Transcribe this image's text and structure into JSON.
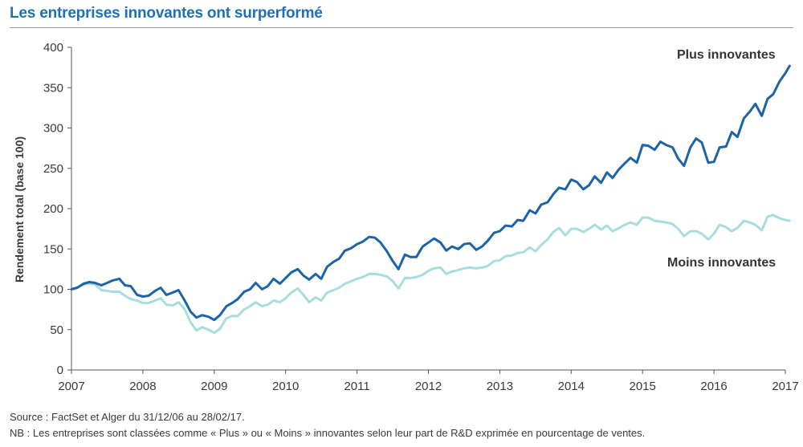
{
  "title": "Les entreprises innovantes ont surperformé",
  "notes": {
    "source": "Source :  FactSet et Alger du 31/12/06 au 28/02/17.",
    "nb": "NB :  Les entreprises sont classées comme « Plus » ou « Moins » innovantes selon leur part de R&D exprimée en pourcentage de ventes."
  },
  "chart_data": {
    "type": "line",
    "title": "Les entreprises innovantes ont surperformé",
    "xlabel": "",
    "ylabel": "Rendement total (base 100)",
    "ylim": [
      0,
      400
    ],
    "xlim": [
      2007,
      2017
    ],
    "yticks": [
      0,
      50,
      100,
      150,
      200,
      250,
      300,
      350,
      400
    ],
    "xticks": [
      2007,
      2008,
      2009,
      2010,
      2011,
      2012,
      2013,
      2014,
      2015,
      2016,
      2017
    ],
    "grid": false,
    "legend": "direct labels at line ends",
    "colors": {
      "plus": "#1d63a8",
      "moins": "#a8dde0"
    },
    "series": [
      {
        "name": "Plus innovantes",
        "points": [
          [
            2007.0,
            100
          ],
          [
            2007.08,
            102
          ],
          [
            2007.17,
            107
          ],
          [
            2007.25,
            109
          ],
          [
            2007.33,
            108
          ],
          [
            2007.42,
            105
          ],
          [
            2007.5,
            108
          ],
          [
            2007.58,
            111
          ],
          [
            2007.67,
            113
          ],
          [
            2007.75,
            105
          ],
          [
            2007.83,
            104
          ],
          [
            2007.92,
            93
          ],
          [
            2008.0,
            91
          ],
          [
            2008.08,
            92
          ],
          [
            2008.17,
            98
          ],
          [
            2008.25,
            102
          ],
          [
            2008.33,
            93
          ],
          [
            2008.42,
            96
          ],
          [
            2008.5,
            99
          ],
          [
            2008.58,
            87
          ],
          [
            2008.67,
            72
          ],
          [
            2008.75,
            65
          ],
          [
            2008.83,
            68
          ],
          [
            2008.92,
            66
          ],
          [
            2009.0,
            62
          ],
          [
            2009.08,
            68
          ],
          [
            2009.17,
            79
          ],
          [
            2009.25,
            83
          ],
          [
            2009.33,
            88
          ],
          [
            2009.42,
            97
          ],
          [
            2009.5,
            100
          ],
          [
            2009.58,
            108
          ],
          [
            2009.67,
            100
          ],
          [
            2009.75,
            104
          ],
          [
            2009.83,
            113
          ],
          [
            2009.92,
            107
          ],
          [
            2010.0,
            114
          ],
          [
            2010.08,
            121
          ],
          [
            2010.17,
            125
          ],
          [
            2010.25,
            117
          ],
          [
            2010.33,
            112
          ],
          [
            2010.42,
            119
          ],
          [
            2010.5,
            113
          ],
          [
            2010.58,
            128
          ],
          [
            2010.67,
            134
          ],
          [
            2010.75,
            138
          ],
          [
            2010.83,
            148
          ],
          [
            2010.92,
            151
          ],
          [
            2011.0,
            156
          ],
          [
            2011.08,
            159
          ],
          [
            2011.17,
            165
          ],
          [
            2011.25,
            164
          ],
          [
            2011.33,
            158
          ],
          [
            2011.42,
            147
          ],
          [
            2011.5,
            135
          ],
          [
            2011.58,
            125
          ],
          [
            2011.67,
            143
          ],
          [
            2011.75,
            140
          ],
          [
            2011.83,
            140
          ],
          [
            2011.92,
            153
          ],
          [
            2012.0,
            158
          ],
          [
            2012.08,
            163
          ],
          [
            2012.17,
            158
          ],
          [
            2012.25,
            148
          ],
          [
            2012.33,
            153
          ],
          [
            2012.42,
            150
          ],
          [
            2012.5,
            156
          ],
          [
            2012.58,
            157
          ],
          [
            2012.67,
            149
          ],
          [
            2012.75,
            153
          ],
          [
            2012.83,
            160
          ],
          [
            2012.92,
            170
          ],
          [
            2013.0,
            172
          ],
          [
            2013.08,
            179
          ],
          [
            2013.17,
            178
          ],
          [
            2013.25,
            186
          ],
          [
            2013.33,
            185
          ],
          [
            2013.42,
            198
          ],
          [
            2013.5,
            194
          ],
          [
            2013.58,
            205
          ],
          [
            2013.67,
            208
          ],
          [
            2013.75,
            218
          ],
          [
            2013.83,
            226
          ],
          [
            2013.92,
            224
          ],
          [
            2014.0,
            236
          ],
          [
            2014.08,
            233
          ],
          [
            2014.17,
            224
          ],
          [
            2014.25,
            229
          ],
          [
            2014.33,
            240
          ],
          [
            2014.42,
            232
          ],
          [
            2014.5,
            245
          ],
          [
            2014.58,
            238
          ],
          [
            2014.67,
            249
          ],
          [
            2014.75,
            256
          ],
          [
            2014.83,
            263
          ],
          [
            2014.92,
            257
          ],
          [
            2015.0,
            279
          ],
          [
            2015.08,
            278
          ],
          [
            2015.17,
            273
          ],
          [
            2015.25,
            283
          ],
          [
            2015.33,
            279
          ],
          [
            2015.42,
            276
          ],
          [
            2015.5,
            262
          ],
          [
            2015.58,
            253
          ],
          [
            2015.67,
            276
          ],
          [
            2015.75,
            287
          ],
          [
            2015.83,
            282
          ],
          [
            2015.92,
            257
          ],
          [
            2016.0,
            258
          ],
          [
            2016.08,
            276
          ],
          [
            2016.17,
            277
          ],
          [
            2016.25,
            295
          ],
          [
            2016.33,
            289
          ],
          [
            2016.42,
            312
          ],
          [
            2016.5,
            320
          ],
          [
            2016.58,
            330
          ],
          [
            2016.67,
            315
          ],
          [
            2016.75,
            336
          ],
          [
            2016.83,
            342
          ],
          [
            2016.92,
            358
          ],
          [
            2017.0,
            368
          ],
          [
            2017.06,
            377
          ]
        ]
      },
      {
        "name": "Moins innovantes",
        "points": [
          [
            2007.0,
            100
          ],
          [
            2007.08,
            102
          ],
          [
            2007.17,
            106
          ],
          [
            2007.25,
            107
          ],
          [
            2007.33,
            106
          ],
          [
            2007.42,
            99
          ],
          [
            2007.5,
            98
          ],
          [
            2007.58,
            97
          ],
          [
            2007.67,
            97
          ],
          [
            2007.75,
            92
          ],
          [
            2007.83,
            88
          ],
          [
            2007.92,
            86
          ],
          [
            2008.0,
            83
          ],
          [
            2008.08,
            83
          ],
          [
            2008.17,
            86
          ],
          [
            2008.25,
            89
          ],
          [
            2008.33,
            81
          ],
          [
            2008.42,
            80
          ],
          [
            2008.5,
            84
          ],
          [
            2008.58,
            76
          ],
          [
            2008.67,
            59
          ],
          [
            2008.75,
            49
          ],
          [
            2008.83,
            53
          ],
          [
            2008.92,
            50
          ],
          [
            2009.0,
            46
          ],
          [
            2009.08,
            51
          ],
          [
            2009.17,
            64
          ],
          [
            2009.25,
            67
          ],
          [
            2009.33,
            67
          ],
          [
            2009.42,
            75
          ],
          [
            2009.5,
            79
          ],
          [
            2009.58,
            84
          ],
          [
            2009.67,
            79
          ],
          [
            2009.75,
            81
          ],
          [
            2009.83,
            86
          ],
          [
            2009.92,
            84
          ],
          [
            2010.0,
            89
          ],
          [
            2010.08,
            96
          ],
          [
            2010.17,
            101
          ],
          [
            2010.25,
            93
          ],
          [
            2010.33,
            84
          ],
          [
            2010.42,
            90
          ],
          [
            2010.5,
            86
          ],
          [
            2010.58,
            96
          ],
          [
            2010.67,
            99
          ],
          [
            2010.75,
            102
          ],
          [
            2010.83,
            107
          ],
          [
            2010.92,
            110
          ],
          [
            2011.0,
            113
          ],
          [
            2011.08,
            115
          ],
          [
            2011.17,
            119
          ],
          [
            2011.25,
            119
          ],
          [
            2011.33,
            118
          ],
          [
            2011.42,
            116
          ],
          [
            2011.5,
            110
          ],
          [
            2011.58,
            101
          ],
          [
            2011.67,
            114
          ],
          [
            2011.75,
            114
          ],
          [
            2011.83,
            115
          ],
          [
            2011.92,
            118
          ],
          [
            2012.0,
            123
          ],
          [
            2012.08,
            126
          ],
          [
            2012.17,
            127
          ],
          [
            2012.25,
            119
          ],
          [
            2012.33,
            122
          ],
          [
            2012.42,
            124
          ],
          [
            2012.5,
            126
          ],
          [
            2012.58,
            127
          ],
          [
            2012.67,
            126
          ],
          [
            2012.75,
            127
          ],
          [
            2012.83,
            129
          ],
          [
            2012.92,
            135
          ],
          [
            2013.0,
            136
          ],
          [
            2013.08,
            141
          ],
          [
            2013.17,
            142
          ],
          [
            2013.25,
            145
          ],
          [
            2013.33,
            146
          ],
          [
            2013.42,
            152
          ],
          [
            2013.5,
            147
          ],
          [
            2013.58,
            155
          ],
          [
            2013.67,
            162
          ],
          [
            2013.75,
            171
          ],
          [
            2013.83,
            176
          ],
          [
            2013.92,
            167
          ],
          [
            2014.0,
            175
          ],
          [
            2014.08,
            175
          ],
          [
            2014.17,
            171
          ],
          [
            2014.25,
            175
          ],
          [
            2014.33,
            180
          ],
          [
            2014.42,
            174
          ],
          [
            2014.5,
            179
          ],
          [
            2014.58,
            172
          ],
          [
            2014.67,
            176
          ],
          [
            2014.75,
            180
          ],
          [
            2014.83,
            183
          ],
          [
            2014.92,
            180
          ],
          [
            2015.0,
            189
          ],
          [
            2015.08,
            189
          ],
          [
            2015.17,
            185
          ],
          [
            2015.25,
            184
          ],
          [
            2015.33,
            183
          ],
          [
            2015.42,
            181
          ],
          [
            2015.5,
            175
          ],
          [
            2015.58,
            166
          ],
          [
            2015.67,
            172
          ],
          [
            2015.75,
            172
          ],
          [
            2015.83,
            169
          ],
          [
            2015.92,
            162
          ],
          [
            2016.0,
            169
          ],
          [
            2016.08,
            180
          ],
          [
            2016.17,
            177
          ],
          [
            2016.25,
            172
          ],
          [
            2016.33,
            176
          ],
          [
            2016.42,
            185
          ],
          [
            2016.5,
            183
          ],
          [
            2016.58,
            180
          ],
          [
            2016.67,
            173
          ],
          [
            2016.75,
            190
          ],
          [
            2016.83,
            192
          ],
          [
            2016.92,
            188
          ],
          [
            2017.0,
            186
          ],
          [
            2017.06,
            185
          ]
        ]
      }
    ]
  }
}
